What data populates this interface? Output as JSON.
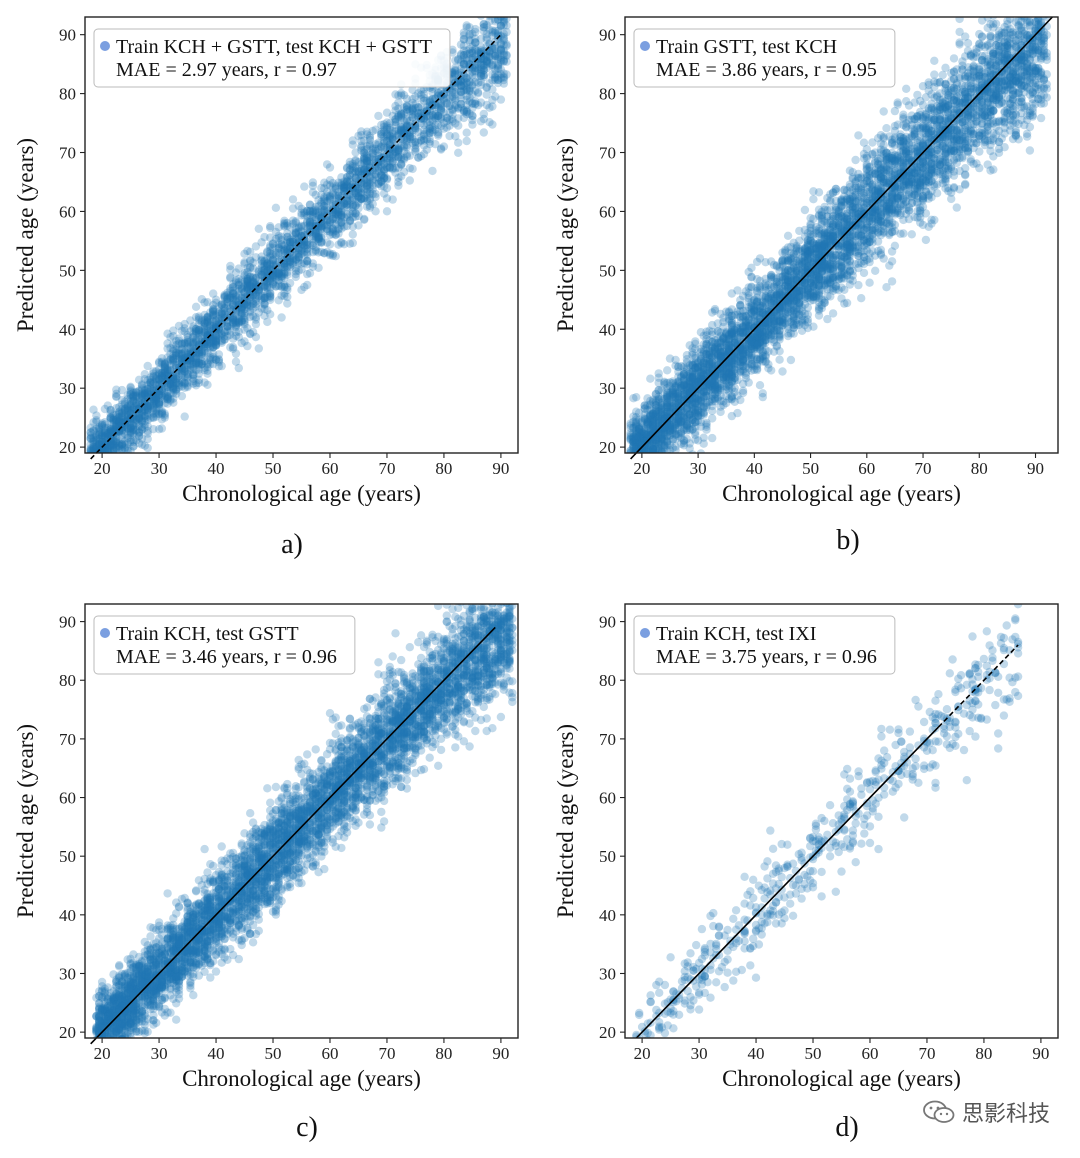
{
  "watermark": {
    "text": "思影科技",
    "icon": "wechat-icon"
  },
  "colors": {
    "point": "#1f77b4",
    "legend_dot": "#7b9fe0",
    "line": "#000000"
  },
  "chart_data": [
    {
      "id": "a",
      "type": "scatter",
      "caption": "a)",
      "xlabel": "Chronological age (years)",
      "ylabel": "Predicted age (years)",
      "xlim": [
        17,
        93
      ],
      "ylim": [
        19,
        93
      ],
      "xticks": [
        20,
        30,
        40,
        50,
        60,
        70,
        80,
        90
      ],
      "yticks": [
        20,
        30,
        40,
        50,
        60,
        70,
        80,
        90
      ],
      "legend": {
        "series": "Train KCH + GSTT, test KCH + GSTT",
        "stats": "MAE = 2.97 years, r = 0.97",
        "location": "top-left"
      },
      "mae": 2.97,
      "r": 0.97,
      "identity_line": {
        "from": [
          18,
          18
        ],
        "to": [
          90,
          90
        ],
        "style": "dashed"
      },
      "sample": {
        "n": 3200,
        "x_range": [
          18,
          91
        ],
        "spread": 3.4,
        "density": "young-heavy"
      }
    },
    {
      "id": "b",
      "type": "scatter",
      "caption": "b)",
      "xlabel": "Chronological age (years)",
      "ylabel": "Predicted age (years)",
      "xlim": [
        17,
        94
      ],
      "ylim": [
        19,
        93
      ],
      "xticks": [
        20,
        30,
        40,
        50,
        60,
        70,
        80,
        90
      ],
      "yticks": [
        20,
        30,
        40,
        50,
        60,
        70,
        80,
        90
      ],
      "legend": {
        "series": "Train GSTT, test KCH",
        "stats": "MAE = 3.86 years, r = 0.95",
        "location": "top-left"
      },
      "mae": 3.86,
      "r": 0.95,
      "identity_line": {
        "from": [
          18,
          18
        ],
        "to": [
          93,
          93
        ],
        "style": "solid"
      },
      "sample": {
        "n": 5200,
        "x_range": [
          18,
          92
        ],
        "spread": 4.6,
        "density": "uniform-heavy"
      }
    },
    {
      "id": "c",
      "type": "scatter",
      "caption": "c)",
      "xlabel": "Chronological age (years)",
      "ylabel": "Predicted age (years)",
      "xlim": [
        17,
        93
      ],
      "ylim": [
        19,
        93
      ],
      "xticks": [
        20,
        30,
        40,
        50,
        60,
        70,
        80,
        90
      ],
      "yticks": [
        20,
        30,
        40,
        50,
        60,
        70,
        80,
        90
      ],
      "legend": {
        "series": "Train KCH, test GSTT",
        "stats": "MAE = 3.46 years, r = 0.96",
        "location": "top-left"
      },
      "mae": 3.46,
      "r": 0.96,
      "identity_line": {
        "from": [
          18,
          18
        ],
        "to": [
          89,
          89
        ],
        "style": "solid"
      },
      "sample": {
        "n": 5200,
        "x_range": [
          19,
          92
        ],
        "spread": 4.2,
        "density": "uniform-heavy"
      }
    },
    {
      "id": "d",
      "type": "scatter",
      "caption": "d)",
      "xlabel": "Chronological age (years)",
      "ylabel": "Predicted age (years)",
      "xlim": [
        17,
        93
      ],
      "ylim": [
        19,
        93
      ],
      "xticks": [
        20,
        30,
        40,
        50,
        60,
        70,
        80,
        90
      ],
      "yticks": [
        20,
        30,
        40,
        50,
        60,
        70,
        80,
        90
      ],
      "legend": {
        "series": "Train KCH, test IXI",
        "stats": "MAE = 3.75 years, r = 0.96",
        "location": "top-left"
      },
      "mae": 3.75,
      "r": 0.96,
      "identity_line": {
        "from": [
          19,
          19
        ],
        "to": [
          86,
          86
        ],
        "style": "solid-then-dashed"
      },
      "sample": {
        "n": 560,
        "x_range": [
          19,
          86
        ],
        "spread": 4.0,
        "density": "sparse"
      }
    }
  ]
}
